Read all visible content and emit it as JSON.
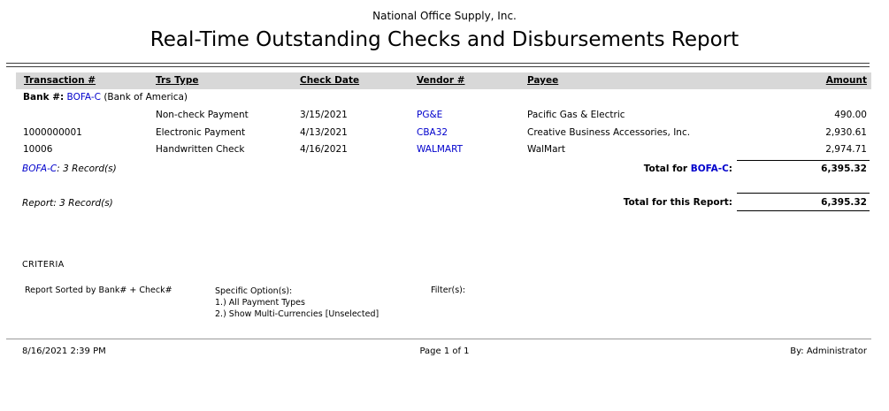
{
  "report": {
    "company": "National Office Supply, Inc.",
    "title": "Real-Time Outstanding Checks and Disbursements Report"
  },
  "table": {
    "columns": [
      "Transaction #",
      "Trs Type",
      "Check Date",
      "Vendor #",
      "Payee",
      "Amount"
    ],
    "bank_group": {
      "label": "Bank #:",
      "bank_code": "BOFA-C",
      "bank_name": "(Bank of America)",
      "rows": [
        {
          "transaction": "",
          "trs_type": "Non-check Payment",
          "check_date": "3/15/2021",
          "vendor": "PG&E",
          "payee": "Pacific Gas & Electric",
          "amount": "490.00"
        },
        {
          "transaction": "1000000001",
          "trs_type": "Electronic Payment",
          "check_date": "4/13/2021",
          "vendor": "CBA32",
          "payee": "Creative Business Accessories, Inc.",
          "amount": "2,930.61"
        },
        {
          "transaction": "10006",
          "trs_type": "Handwritten Check",
          "check_date": "4/16/2021",
          "vendor": "WALMART",
          "payee": "WalMart",
          "amount": "2,974.71"
        }
      ],
      "records_code": "BOFA-C",
      "records_text": ": 3 Record(s)",
      "total_label_prefix": "Total for ",
      "total_label_code": "BOFA-C",
      "total_label_suffix": ":",
      "total_amount": "6,395.32"
    },
    "report_summary": {
      "records_text": "Report: 3 Record(s)",
      "total_label": "Total for this Report:",
      "total_amount": "6,395.32"
    }
  },
  "criteria": {
    "heading": "CRITERIA",
    "sorted_by": "Report Sorted by Bank# + Check#",
    "options_label": "Specific Option(s):",
    "options": [
      "1.) All Payment Types",
      "2.) Show Multi-Currencies [Unselected]"
    ],
    "filters_label": "Filter(s):"
  },
  "footer": {
    "datetime": "8/16/2021 2:39 PM",
    "page": "Page 1 of 1",
    "by": "By: Administrator"
  },
  "colors": {
    "link_blue": "#0000CC",
    "header_band_gray": "#D8D8D8"
  }
}
